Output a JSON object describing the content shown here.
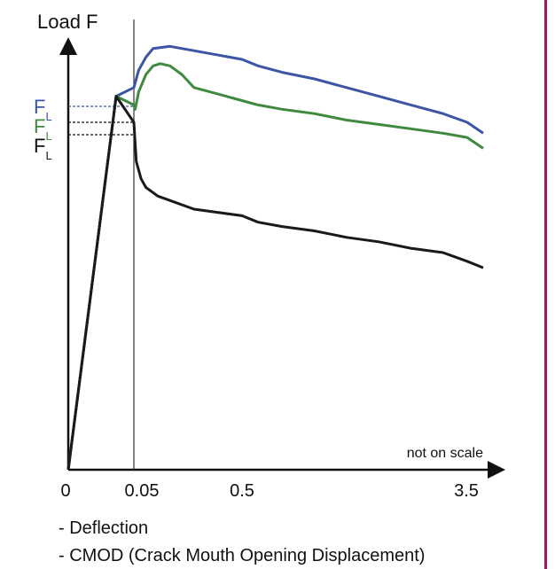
{
  "chart_data": {
    "type": "line",
    "ylabel": "Load F",
    "x_annotation": "not on scale",
    "x_ticks": [
      "0",
      "0.05",
      "0.5",
      "3.5"
    ],
    "fl_labels": [
      {
        "text": "F",
        "sub": "L",
        "color": "#3c55a5"
      },
      {
        "text": "F",
        "sub": "L",
        "color": "#3f8a3f"
      },
      {
        "text": "F",
        "sub": "L",
        "color": "#1a1a1a"
      }
    ],
    "legend_notes": [
      "- Deflection",
      "- CMOD (Crack Mouth Opening Displacement)"
    ],
    "series": [
      {
        "color": "#3c55a5",
        "x": [
          0,
          0.04,
          0.05,
          0.07,
          0.1,
          0.13,
          0.2,
          0.3,
          0.5,
          0.7,
          1.0,
          1.4,
          1.8,
          2.2,
          2.6,
          3.0,
          3.3,
          3.5
        ],
        "y": [
          0,
          0.86,
          0.88,
          0.92,
          0.95,
          0.97,
          0.975,
          0.965,
          0.945,
          0.93,
          0.915,
          0.9,
          0.88,
          0.86,
          0.84,
          0.82,
          0.8,
          0.775
        ]
      },
      {
        "color": "#3f8a3f",
        "x": [
          0,
          0.04,
          0.05,
          0.055,
          0.07,
          0.1,
          0.13,
          0.16,
          0.2,
          0.25,
          0.3,
          0.4,
          0.5,
          0.7,
          1.0,
          1.4,
          1.8,
          2.2,
          2.6,
          3.0,
          3.3,
          3.5
        ],
        "y": [
          0,
          0.86,
          0.84,
          0.83,
          0.87,
          0.91,
          0.93,
          0.935,
          0.93,
          0.91,
          0.88,
          0.865,
          0.85,
          0.84,
          0.83,
          0.82,
          0.805,
          0.795,
          0.785,
          0.775,
          0.765,
          0.74
        ]
      },
      {
        "color": "#1a1a1a",
        "x": [
          0,
          0.04,
          0.05,
          0.06,
          0.08,
          0.1,
          0.15,
          0.2,
          0.3,
          0.5,
          0.7,
          1.0,
          1.4,
          1.8,
          2.2,
          2.6,
          3.0,
          3.3,
          3.5
        ],
        "y": [
          0,
          0.86,
          0.8,
          0.71,
          0.67,
          0.65,
          0.63,
          0.62,
          0.6,
          0.585,
          0.57,
          0.56,
          0.55,
          0.535,
          0.525,
          0.51,
          0.5,
          0.48,
          0.465
        ]
      }
    ]
  }
}
